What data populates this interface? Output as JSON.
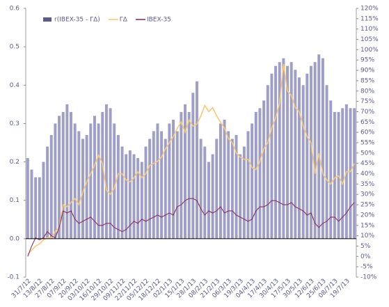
{
  "chart_data": {
    "type": "bar",
    "categories": [
      "31/7/12",
      null,
      null,
      "13/8/12",
      null,
      null,
      "27/8/12",
      null,
      null,
      "07/9/12",
      null,
      null,
      "20/9/12",
      null,
      null,
      "03/10/12",
      null,
      null,
      "16/10/12",
      null,
      null,
      "29/10/12",
      null,
      null,
      "09/11/12",
      null,
      null,
      "22/11/12",
      null,
      null,
      "05/12/12",
      null,
      null,
      "18/12/12",
      null,
      null,
      "02/1/13",
      null,
      null,
      "15/1/13",
      null,
      null,
      "28/1/13",
      null,
      null,
      "08/2/13",
      null,
      null,
      "21/2/13",
      null,
      null,
      "06/3/13",
      null,
      null,
      "19/3/13",
      null,
      null,
      "04/4/13",
      null,
      null,
      "17/4/13",
      null,
      null,
      "30/4/13",
      null,
      null,
      "17/5/13",
      null,
      null,
      "30/5/13",
      null,
      null,
      "12/6/13",
      null,
      null,
      "25/6/13",
      null,
      null,
      "08/7/13",
      null,
      null,
      "19/7/13",
      null,
      null
    ],
    "series": [
      {
        "name": "r(IBEX-35 - ΓΔ)",
        "type": "bar",
        "color": "#9e9ec6",
        "legend_color": "#5c5c8a",
        "values": [
          0.21,
          0.18,
          0.16,
          0.16,
          0.2,
          0.24,
          0.27,
          0.3,
          0.32,
          0.33,
          0.35,
          0.33,
          0.3,
          0.28,
          0.26,
          0.27,
          0.3,
          0.32,
          0.3,
          0.33,
          0.35,
          0.34,
          0.3,
          0.27,
          0.24,
          0.22,
          0.23,
          0.22,
          0.21,
          0.2,
          0.24,
          0.26,
          0.28,
          0.3,
          0.28,
          0.26,
          0.3,
          0.31,
          0.28,
          0.33,
          0.35,
          0.33,
          0.38,
          0.41,
          0.26,
          0.24,
          0.2,
          0.22,
          0.26,
          0.3,
          0.31,
          0.28,
          0.26,
          0.27,
          0.22,
          0.24,
          0.28,
          0.3,
          0.33,
          0.34,
          0.36,
          0.4,
          0.43,
          0.45,
          0.46,
          0.47,
          0.45,
          0.46,
          0.44,
          0.42,
          0.4,
          0.43,
          0.45,
          0.46,
          0.48,
          0.47,
          0.4,
          0.36,
          0.33,
          0.33,
          0.34,
          0.35,
          0.34,
          0.34
        ]
      },
      {
        "name": "ΓΔ",
        "type": "line",
        "axis": "y2",
        "color": "#f7c87a",
        "values": [
          1,
          3,
          5,
          6,
          8,
          9,
          9,
          12,
          14,
          25,
          24,
          26,
          28,
          25,
          31,
          36,
          40,
          44,
          49,
          45,
          32,
          30,
          33,
          40,
          40,
          37,
          36,
          38,
          41,
          38,
          40,
          44,
          45,
          46,
          48,
          52,
          55,
          58,
          62,
          65,
          60,
          66,
          63,
          64,
          68,
          73,
          70,
          72,
          68,
          65,
          62,
          57,
          55,
          50,
          48,
          47,
          47,
          43,
          42,
          46,
          52,
          55,
          62,
          67,
          74,
          93,
          80,
          78,
          72,
          70,
          63,
          58,
          55,
          40,
          50,
          40,
          37,
          35,
          38,
          39,
          35,
          41,
          41,
          45
        ]
      },
      {
        "name": "IBEX-35",
        "type": "line",
        "axis": "y2",
        "color": "#8b2f60",
        "values": [
          0,
          5,
          9,
          8,
          9,
          12,
          10,
          9,
          14,
          22,
          21,
          22,
          18,
          16,
          17,
          18,
          19,
          17,
          15,
          15,
          16,
          16,
          14,
          13,
          12,
          13,
          15,
          17,
          16,
          18,
          17,
          18,
          19,
          20,
          19,
          20,
          21,
          20,
          24,
          25,
          27,
          28,
          28,
          27,
          23,
          20,
          22,
          21,
          22,
          24,
          21,
          22,
          22,
          20,
          19,
          18,
          17,
          18,
          22,
          24,
          24,
          25,
          27,
          27,
          26,
          25,
          25,
          26,
          24,
          23,
          22,
          20,
          21,
          16,
          14,
          16,
          17,
          19,
          19,
          17,
          19,
          21,
          24,
          26
        ]
      }
    ],
    "ylim": [
      -0.1,
      0.6
    ],
    "yticks": [
      {
        "value": -0.1,
        "label": "-0.1"
      },
      {
        "value": 0,
        "label": "0.0"
      },
      0.1,
      0.2,
      0.3,
      0.4,
      0.5,
      0.6
    ],
    "y2lim": [
      -10,
      120
    ],
    "y2ticks": [
      {
        "value": -10,
        "label": "-10%"
      },
      {
        "value": -5,
        "label": "-5%"
      },
      {
        "value": 0,
        "label": "0%"
      },
      {
        "value": 5,
        "label": "5%"
      },
      {
        "value": 10,
        "label": "10%"
      },
      {
        "value": 15,
        "label": "15%"
      },
      {
        "value": 20,
        "label": "20%"
      },
      {
        "value": 25,
        "label": "25%"
      },
      {
        "value": 30,
        "label": "30%"
      },
      {
        "value": 35,
        "label": "35%"
      },
      {
        "value": 40,
        "label": "40%"
      },
      {
        "value": 45,
        "label": "45%"
      },
      {
        "value": 50,
        "label": "50%"
      },
      {
        "value": 55,
        "label": "55%"
      },
      {
        "value": 60,
        "label": "60%"
      },
      {
        "value": 65,
        "label": "65%"
      },
      {
        "value": 70,
        "label": "70%"
      },
      {
        "value": 75,
        "label": "75%"
      },
      {
        "value": 80,
        "label": "80%"
      },
      {
        "value": 85,
        "label": "85%"
      },
      {
        "value": 90,
        "label": "90%"
      },
      {
        "value": 95,
        "label": "95%"
      },
      {
        "value": 100,
        "label": "100%"
      },
      {
        "value": 105,
        "label": "105%"
      },
      {
        "value": 110,
        "label": "110%"
      },
      {
        "value": 115,
        "label": "115%"
      },
      {
        "value": 120,
        "label": "120%"
      }
    ],
    "grid": false,
    "legend": "top-left"
  }
}
